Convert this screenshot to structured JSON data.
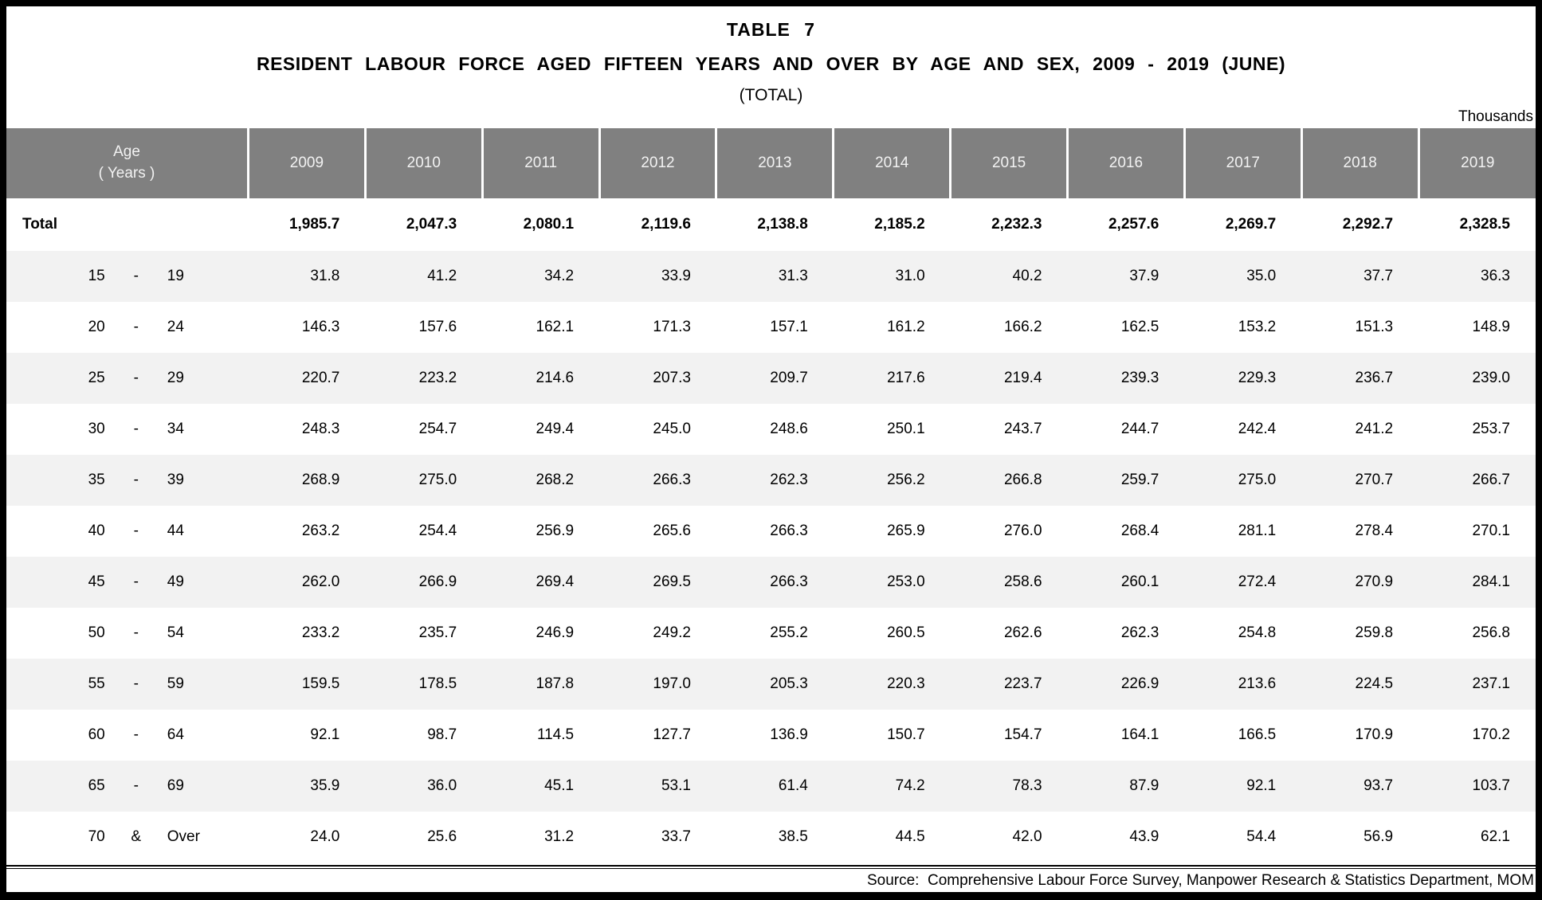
{
  "title": {
    "line1": "TABLE 7",
    "line2": "RESIDENT LABOUR FORCE AGED FIFTEEN YEARS AND OVER BY AGE AND SEX, 2009 - 2019 (JUNE)",
    "line3": "(TOTAL)"
  },
  "units_label": "Thousands",
  "source_note": "Source:  Comprehensive Labour Force Survey, Manpower Research & Statistics Department, MOM",
  "table": {
    "age_header_line1": "Age",
    "age_header_line2": "( Years )",
    "years": [
      "2009",
      "2010",
      "2011",
      "2012",
      "2013",
      "2014",
      "2015",
      "2016",
      "2017",
      "2018",
      "2019"
    ],
    "total_row": {
      "label": "Total",
      "values": [
        "1,985.7",
        "2,047.3",
        "2,080.1",
        "2,119.6",
        "2,138.8",
        "2,185.2",
        "2,232.3",
        "2,257.6",
        "2,269.7",
        "2,292.7",
        "2,328.5"
      ]
    },
    "rows": [
      {
        "from": "15",
        "sep": "-",
        "to": "19",
        "values": [
          "31.8",
          "41.2",
          "34.2",
          "33.9",
          "31.3",
          "31.0",
          "40.2",
          "37.9",
          "35.0",
          "37.7",
          "36.3"
        ]
      },
      {
        "from": "20",
        "sep": "-",
        "to": "24",
        "values": [
          "146.3",
          "157.6",
          "162.1",
          "171.3",
          "157.1",
          "161.2",
          "166.2",
          "162.5",
          "153.2",
          "151.3",
          "148.9"
        ]
      },
      {
        "from": "25",
        "sep": "-",
        "to": "29",
        "values": [
          "220.7",
          "223.2",
          "214.6",
          "207.3",
          "209.7",
          "217.6",
          "219.4",
          "239.3",
          "229.3",
          "236.7",
          "239.0"
        ]
      },
      {
        "from": "30",
        "sep": "-",
        "to": "34",
        "values": [
          "248.3",
          "254.7",
          "249.4",
          "245.0",
          "248.6",
          "250.1",
          "243.7",
          "244.7",
          "242.4",
          "241.2",
          "253.7"
        ]
      },
      {
        "from": "35",
        "sep": "-",
        "to": "39",
        "values": [
          "268.9",
          "275.0",
          "268.2",
          "266.3",
          "262.3",
          "256.2",
          "266.8",
          "259.7",
          "275.0",
          "270.7",
          "266.7"
        ]
      },
      {
        "from": "40",
        "sep": "-",
        "to": "44",
        "values": [
          "263.2",
          "254.4",
          "256.9",
          "265.6",
          "266.3",
          "265.9",
          "276.0",
          "268.4",
          "281.1",
          "278.4",
          "270.1"
        ]
      },
      {
        "from": "45",
        "sep": "-",
        "to": "49",
        "values": [
          "262.0",
          "266.9",
          "269.4",
          "269.5",
          "266.3",
          "253.0",
          "258.6",
          "260.1",
          "272.4",
          "270.9",
          "284.1"
        ]
      },
      {
        "from": "50",
        "sep": "-",
        "to": "54",
        "values": [
          "233.2",
          "235.7",
          "246.9",
          "249.2",
          "255.2",
          "260.5",
          "262.6",
          "262.3",
          "254.8",
          "259.8",
          "256.8"
        ]
      },
      {
        "from": "55",
        "sep": "-",
        "to": "59",
        "values": [
          "159.5",
          "178.5",
          "187.8",
          "197.0",
          "205.3",
          "220.3",
          "223.7",
          "226.9",
          "213.6",
          "224.5",
          "237.1"
        ]
      },
      {
        "from": "60",
        "sep": "-",
        "to": "64",
        "values": [
          "92.1",
          "98.7",
          "114.5",
          "127.7",
          "136.9",
          "150.7",
          "154.7",
          "164.1",
          "166.5",
          "170.9",
          "170.2"
        ]
      },
      {
        "from": "65",
        "sep": "-",
        "to": "69",
        "values": [
          "35.9",
          "36.0",
          "45.1",
          "53.1",
          "61.4",
          "74.2",
          "78.3",
          "87.9",
          "92.1",
          "93.7",
          "103.7"
        ]
      },
      {
        "from": "70",
        "sep": "&",
        "to": "Over",
        "values": [
          "24.0",
          "25.6",
          "31.2",
          "33.7",
          "38.5",
          "44.5",
          "42.0",
          "43.9",
          "54.4",
          "56.9",
          "62.1"
        ]
      }
    ]
  }
}
